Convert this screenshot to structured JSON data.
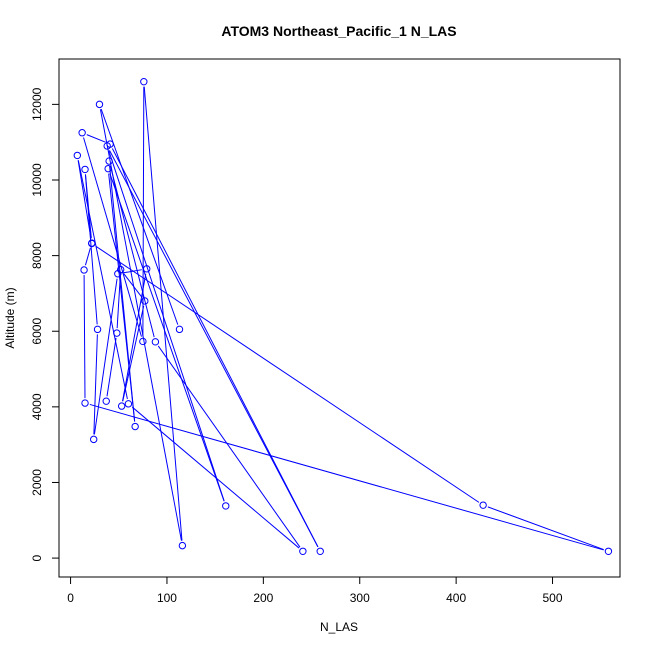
{
  "chart_data": {
    "type": "line",
    "title": "ATOM3 Northeast_Pacific_1 N_LAS",
    "xlabel": "N_LAS",
    "ylabel": "Altitude (m)",
    "xlim": [
      -12,
      570
    ],
    "ylim": [
      -500,
      13200
    ],
    "xticks": [
      0,
      100,
      200,
      300,
      400,
      500
    ],
    "xtick_labels": [
      "0",
      "100",
      "200",
      "300",
      "400",
      "500"
    ],
    "yticks": [
      0,
      2000,
      4000,
      6000,
      8000,
      10000,
      12000
    ],
    "ytick_labels": [
      "0",
      "2000",
      "4000",
      "6000",
      "8000",
      "10000",
      "12000"
    ],
    "grid": false,
    "series": [
      {
        "color": "#0000ff",
        "marker": "open-circle",
        "points": [
          {
            "x": 113,
            "y": 6050
          },
          {
            "x": 30,
            "y": 12000
          },
          {
            "x": 116,
            "y": 330
          },
          {
            "x": 76,
            "y": 12600
          },
          {
            "x": 75,
            "y": 5730
          },
          {
            "x": 12,
            "y": 11250
          },
          {
            "x": 41,
            "y": 10950
          },
          {
            "x": 259,
            "y": 180
          },
          {
            "x": 38,
            "y": 10900
          },
          {
            "x": 161,
            "y": 1380
          },
          {
            "x": 39,
            "y": 10300
          },
          {
            "x": 67,
            "y": 3480
          },
          {
            "x": 40,
            "y": 10500
          },
          {
            "x": 88,
            "y": 5720
          },
          {
            "x": 241,
            "y": 180
          },
          {
            "x": 60,
            "y": 4080
          },
          {
            "x": 7,
            "y": 10650
          },
          {
            "x": 22,
            "y": 8320
          },
          {
            "x": 428,
            "y": 1400
          },
          {
            "x": 558,
            "y": 180
          },
          {
            "x": 15,
            "y": 4100
          },
          {
            "x": 14,
            "y": 7620
          },
          {
            "x": 22,
            "y": 8330
          },
          {
            "x": 15,
            "y": 10280
          },
          {
            "x": 28,
            "y": 6050
          },
          {
            "x": 24,
            "y": 3140
          },
          {
            "x": 49,
            "y": 7520
          },
          {
            "x": 79,
            "y": 7650
          },
          {
            "x": 53,
            "y": 4020
          },
          {
            "x": 77,
            "y": 6800
          },
          {
            "x": 52,
            "y": 7630
          },
          {
            "x": 48,
            "y": 5950
          },
          {
            "x": 37,
            "y": 4150
          }
        ]
      }
    ]
  }
}
